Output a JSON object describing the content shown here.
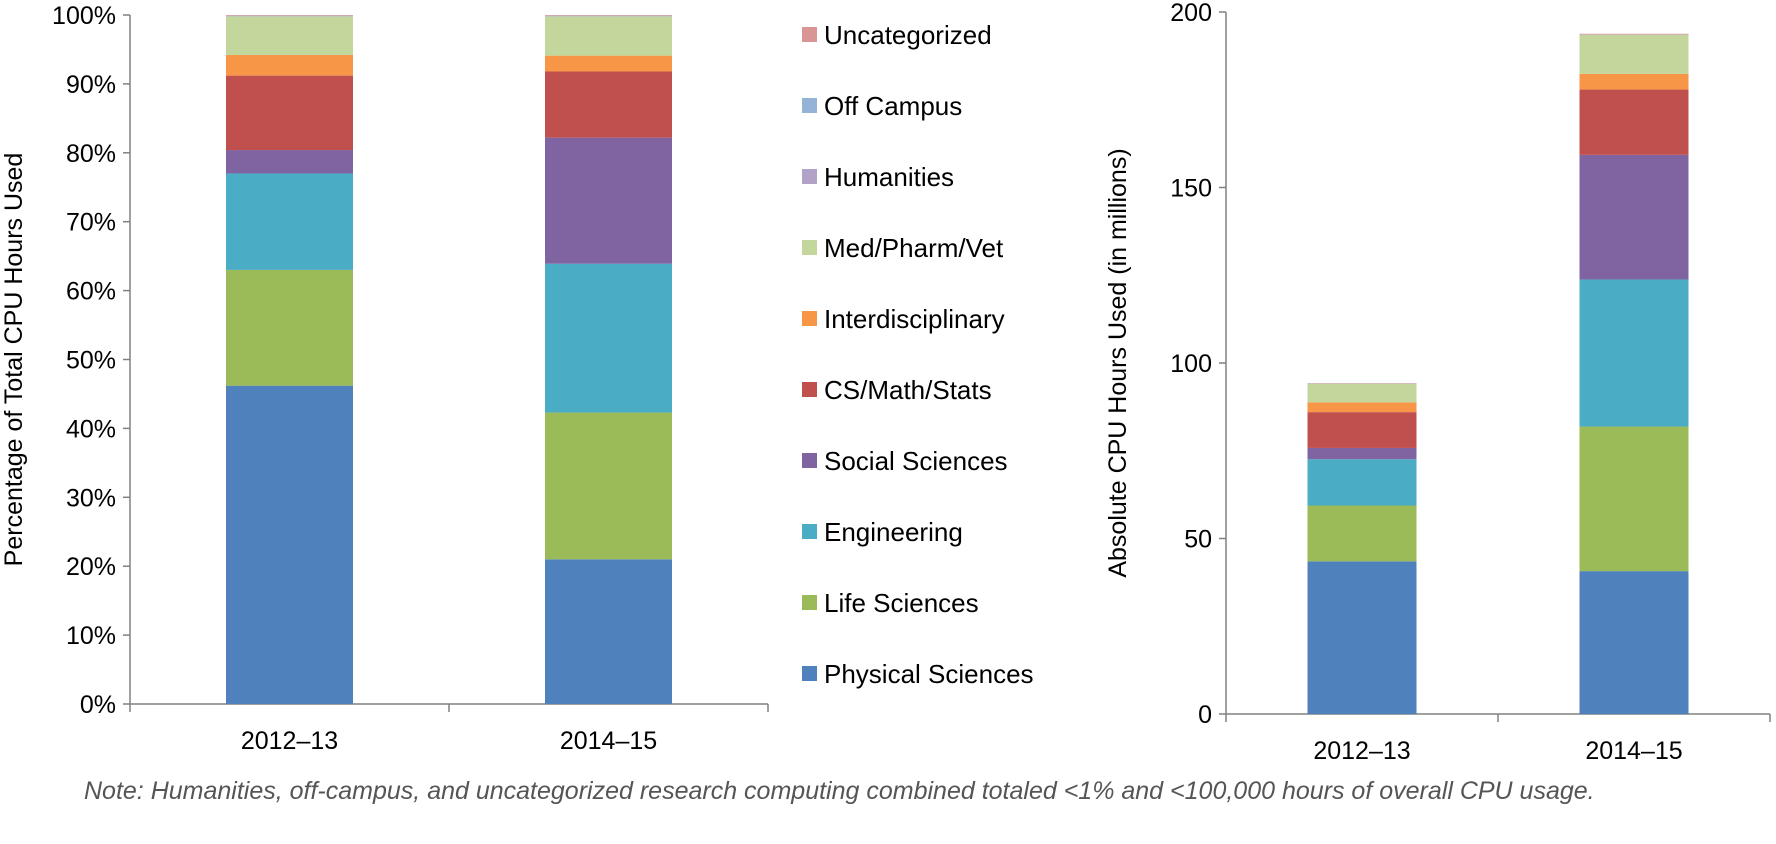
{
  "colors": {
    "Uncategorized": "#d99594",
    "Off Campus": "#95b3d7",
    "Humanities": "#b3a2c7",
    "Med/Pharm/Vet": "#c3d69b",
    "Interdisciplinary": "#f79646",
    "CS/Math/Stats": "#c0504d",
    "Social Sciences": "#8064a2",
    "Engineering": "#4bacc6",
    "Life Sciences": "#9bbb59",
    "Physical Sciences": "#4f81bd",
    "axis": "#808080"
  },
  "legend": {
    "items": [
      "Uncategorized",
      "Off Campus",
      "Humanities",
      "Med/Pharm/Vet",
      "Interdisciplinary",
      "CS/Math/Stats",
      "Social Sciences",
      "Engineering",
      "Life Sciences",
      "Physical Sciences"
    ]
  },
  "note": "Note: Humanities, off-campus, and uncategorized research computing combined totaled <1% and <100,000 hours of overall CPU usage.",
  "chart_data": [
    {
      "type": "bar",
      "stacked": true,
      "title": "",
      "xlabel": "",
      "ylabel": "Percentage of Total CPU Hours Used",
      "categories": [
        "2012–13",
        "2014–15"
      ],
      "ylim": [
        0,
        100
      ],
      "yticks": [
        "0%",
        "10%",
        "20%",
        "30%",
        "40%",
        "50%",
        "60%",
        "70%",
        "80%",
        "90%",
        "100%"
      ],
      "ytick_values": [
        0,
        10,
        20,
        30,
        40,
        50,
        60,
        70,
        80,
        90,
        100
      ],
      "series": [
        {
          "name": "Physical Sciences",
          "values": [
            46.2,
            21.0
          ]
        },
        {
          "name": "Life Sciences",
          "values": [
            16.8,
            21.3
          ]
        },
        {
          "name": "Engineering",
          "values": [
            14.0,
            21.6
          ]
        },
        {
          "name": "Social Sciences",
          "values": [
            3.4,
            18.3
          ]
        },
        {
          "name": "CS/Math/Stats",
          "values": [
            10.8,
            9.6
          ]
        },
        {
          "name": "Interdisciplinary",
          "values": [
            3.0,
            2.3
          ]
        },
        {
          "name": "Med/Pharm/Vet",
          "values": [
            5.6,
            5.7
          ]
        },
        {
          "name": "Humanities",
          "values": [
            0.05,
            0.05
          ]
        },
        {
          "name": "Off Campus",
          "values": [
            0.05,
            0.05
          ]
        },
        {
          "name": "Uncategorized",
          "values": [
            0.1,
            0.1
          ]
        }
      ]
    },
    {
      "type": "bar",
      "stacked": true,
      "title": "",
      "xlabel": "",
      "ylabel": "Absolute CPU Hours Used (in millions)",
      "categories": [
        "2012–13",
        "2014–15"
      ],
      "ylim": [
        0,
        200
      ],
      "yticks": [
        "0",
        "50",
        "100",
        "150",
        "200"
      ],
      "ytick_values": [
        0,
        50,
        100,
        150,
        200
      ],
      "series": [
        {
          "name": "Physical Sciences",
          "values": [
            43.5,
            40.7
          ]
        },
        {
          "name": "Life Sciences",
          "values": [
            15.9,
            41.2
          ]
        },
        {
          "name": "Engineering",
          "values": [
            13.2,
            41.9
          ]
        },
        {
          "name": "Social Sciences",
          "values": [
            3.2,
            35.5
          ]
        },
        {
          "name": "CS/Math/Stats",
          "values": [
            10.2,
            18.6
          ]
        },
        {
          "name": "Interdisciplinary",
          "values": [
            2.8,
            4.5
          ]
        },
        {
          "name": "Med/Pharm/Vet",
          "values": [
            5.3,
            11.1
          ]
        },
        {
          "name": "Humanities",
          "values": [
            0.05,
            0.05
          ]
        },
        {
          "name": "Off Campus",
          "values": [
            0.05,
            0.05
          ]
        },
        {
          "name": "Uncategorized",
          "values": [
            0.1,
            0.2
          ]
        }
      ]
    }
  ]
}
